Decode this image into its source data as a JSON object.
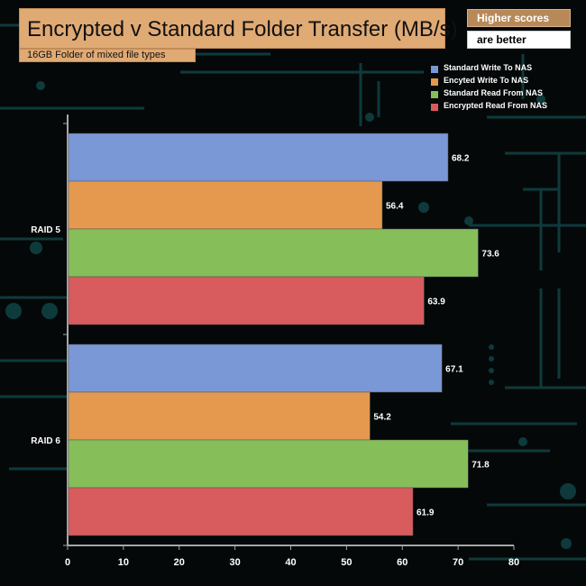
{
  "header": {
    "title": "Encrypted v Standard Folder Transfer (MB/s)",
    "subtitle": "16GB Folder of mixed file types",
    "note_top": "Higher scores",
    "note_bottom": "are better"
  },
  "colors": {
    "background": "#050808",
    "circuit": "#0e3a3c",
    "axis": "#a6a6a6"
  },
  "chart_data": {
    "type": "bar",
    "orientation": "horizontal",
    "title": "Encrypted v Standard Folder Transfer (MB/s)",
    "subtitle": "16GB Folder of mixed file types",
    "categories": [
      "RAID 5",
      "RAID 6"
    ],
    "series": [
      {
        "name": "Standard Write To NAS",
        "color": "#7a97d6",
        "values": [
          68.2,
          67.1
        ]
      },
      {
        "name": "Encyted Write To NAS",
        "color": "#e5994f",
        "values": [
          56.4,
          54.2
        ]
      },
      {
        "name": "Standard Read From NAS",
        "color": "#86be5a",
        "values": [
          73.6,
          71.8
        ]
      },
      {
        "name": "Encrypted Read From NAS",
        "color": "#d85b5e",
        "values": [
          63.9,
          61.9
        ]
      }
    ],
    "xlim": [
      0,
      80
    ],
    "xticks": [
      "0",
      "10",
      "20",
      "30",
      "40",
      "50",
      "60",
      "70",
      "80"
    ],
    "grid": false,
    "legend_position": "top-right",
    "data_labels": true
  }
}
